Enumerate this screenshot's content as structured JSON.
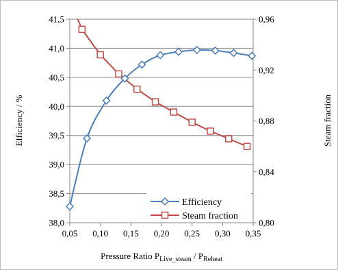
{
  "chart_data": {
    "type": "line",
    "xlabel_main": "Pressure Ratio P",
    "xlabel_sub1": "Live_steam",
    "xlabel_mid": " / P",
    "xlabel_sub2": "Reheat",
    "ylabel_left": "Efficiency  / %",
    "ylabel_right": "Steam fraction",
    "xlim": [
      0.05,
      0.35
    ],
    "ylim_left": [
      38.0,
      41.5
    ],
    "ylim_right": [
      0.8,
      0.96
    ],
    "x_ticks": [
      "0,05",
      "0,10",
      "0,15",
      "0,20",
      "0,25",
      "0,30",
      "0,35"
    ],
    "y_left_ticks": [
      "38,0",
      "38,5",
      "39,0",
      "39,5",
      "40,0",
      "40,5",
      "41,0",
      "41,5"
    ],
    "y_right_ticks": [
      "0,80",
      "0,84",
      "0,88",
      "0,92",
      "0,96"
    ],
    "grid": "horizontal",
    "legend_position": "bottom-right",
    "series": [
      {
        "name": "Efficiency",
        "axis": "left",
        "color": "#4a7ebb",
        "marker": "diamond",
        "x": [
          0.05,
          0.078,
          0.11,
          0.14,
          0.168,
          0.198,
          0.228,
          0.258,
          0.288,
          0.318,
          0.348
        ],
        "y": [
          38.28,
          39.45,
          40.1,
          40.48,
          40.72,
          40.88,
          40.94,
          40.97,
          40.96,
          40.92,
          40.87
        ]
      },
      {
        "name": "Steam fraction",
        "axis": "right",
        "color": "#be4b48",
        "marker": "square",
        "x": [
          0.05,
          0.07,
          0.1,
          0.13,
          0.16,
          0.19,
          0.22,
          0.25,
          0.28,
          0.31,
          0.34
        ],
        "y": [
          0.975,
          0.952,
          0.932,
          0.917,
          0.905,
          0.895,
          0.887,
          0.879,
          0.872,
          0.866,
          0.86
        ]
      }
    ]
  }
}
